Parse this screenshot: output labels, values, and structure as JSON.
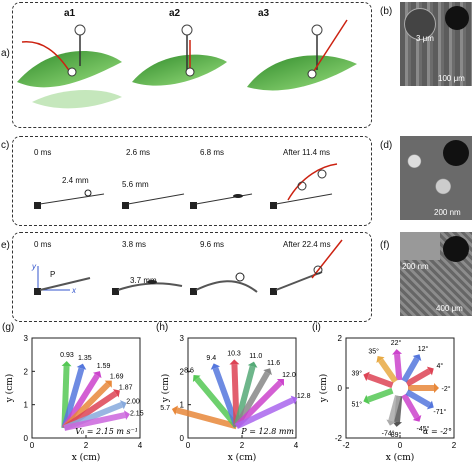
{
  "panels": {
    "a": {
      "label": "a)",
      "subs": [
        "a1",
        "a2",
        "a3"
      ]
    },
    "b": {
      "label": "(b)",
      "scale_small": "3 μm",
      "scale_big": "100 μm"
    },
    "c": {
      "label": "c)",
      "times": [
        "0 ms",
        "2.6 ms",
        "6.8 ms",
        "After 11.4 ms"
      ],
      "measures": [
        "2.4 mm",
        "5.6 mm"
      ]
    },
    "d": {
      "label": "(d)",
      "scale": "200 nm"
    },
    "e": {
      "label": "e)",
      "times": [
        "0 ms",
        "3.8 ms",
        "9.6 ms",
        "After 22.4 ms"
      ],
      "measure": "3.7 mm",
      "axis_y": "y",
      "axis_x": "x",
      "point": "P"
    },
    "f": {
      "label": "(f)",
      "scale_small": "200 nm",
      "scale_big": "400 μm"
    },
    "g": {
      "label": "(g)"
    },
    "h": {
      "label": "(h)"
    },
    "i": {
      "label": "(i)"
    }
  },
  "chart_data": [
    {
      "panel": "g",
      "type": "scatter",
      "xlabel": "x (cm)",
      "ylabel": "y (cm)",
      "xlim": [
        0,
        4
      ],
      "ylim": [
        0,
        3
      ],
      "xticks": [
        "0",
        "2",
        "4"
      ],
      "yticks": [
        "0",
        "1",
        "2",
        "3"
      ],
      "series": [
        {
          "label": "0.93",
          "color": "#55c855",
          "angle_deg": 88
        },
        {
          "label": "1.35",
          "color": "#5577dd",
          "angle_deg": 74
        },
        {
          "label": "1.59",
          "color": "#cc44cc",
          "angle_deg": 58
        },
        {
          "label": "1.69",
          "color": "#e8883a",
          "angle_deg": 45
        },
        {
          "label": "1.87",
          "color": "#dd4455",
          "angle_deg": 34
        },
        {
          "label": "2.00",
          "color": "#88aadd",
          "angle_deg": 22
        },
        {
          "label": "2.15",
          "color": "#cc66dd",
          "angle_deg": 12
        }
      ],
      "annotation": "V₀ = 2.15 m s⁻¹"
    },
    {
      "panel": "h",
      "type": "scatter",
      "xlabel": "x (cm)",
      "ylabel": "y (cm)",
      "xlim": [
        0,
        4
      ],
      "ylim": [
        0,
        3
      ],
      "xticks": [
        "0",
        "2",
        "4"
      ],
      "yticks": [
        "0",
        "1",
        "2",
        "3"
      ],
      "series": [
        {
          "label": "5.7",
          "color": "#e8883a",
          "angle_deg": 165
        },
        {
          "label": "8.6",
          "color": "#55c855",
          "angle_deg": 130
        },
        {
          "label": "9.4",
          "color": "#5577dd",
          "angle_deg": 110
        },
        {
          "label": "10.3",
          "color": "#dd4455",
          "angle_deg": 92
        },
        {
          "label": "11.0",
          "color": "#55aa77",
          "angle_deg": 75
        },
        {
          "label": "11.6",
          "color": "#888888",
          "angle_deg": 60
        },
        {
          "label": "12.0",
          "color": "#cc44cc",
          "angle_deg": 45
        },
        {
          "label": "12.8",
          "color": "#aa66ee",
          "angle_deg": 25
        }
      ],
      "annotation": "P = 12.8 mm"
    },
    {
      "panel": "i",
      "type": "scatter",
      "xlabel": "x (cm)",
      "ylabel": "y (cm)",
      "xlim": [
        -2,
        2
      ],
      "ylim": [
        -2,
        2
      ],
      "xticks": [
        "-2",
        "0",
        "2"
      ],
      "yticks": [
        "-2",
        "0",
        "2"
      ],
      "series": [
        {
          "label": "-2°",
          "color": "#e8883a",
          "angle_deg": 0
        },
        {
          "label": "4°",
          "color": "#dd4455",
          "angle_deg": 30
        },
        {
          "label": "12°",
          "color": "#5577dd",
          "angle_deg": 60
        },
        {
          "label": "22°",
          "color": "#cc44cc",
          "angle_deg": 95
        },
        {
          "label": "35°",
          "color": "#e8aa44",
          "angle_deg": 125
        },
        {
          "label": "39°",
          "color": "#dd4455",
          "angle_deg": 160
        },
        {
          "label": "51°",
          "color": "#55c855",
          "angle_deg": 200
        },
        {
          "label": "89°",
          "color": "#555555",
          "angle_deg": 265
        },
        {
          "label": "-74°",
          "color": "#aaaaaa",
          "angle_deg": 255
        },
        {
          "label": "-45°",
          "color": "#cc44cc",
          "angle_deg": 300
        },
        {
          "label": "-71°",
          "color": "#5577dd",
          "angle_deg": 330
        }
      ],
      "annotation": "α = -2°"
    }
  ]
}
